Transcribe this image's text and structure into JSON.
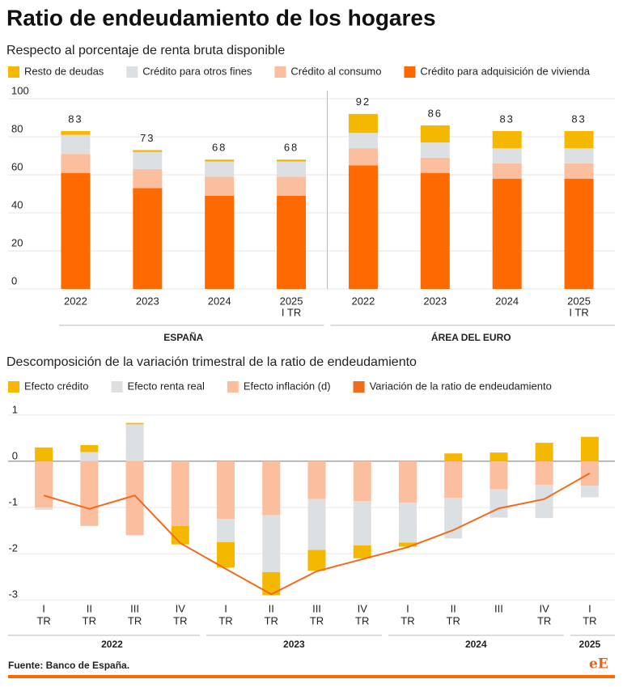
{
  "title": "Ratio de endeudamiento de los hogares",
  "source": "Fuente: Banco de España.",
  "logo": "eE",
  "chart_data": [
    {
      "type": "stacked_bar",
      "title": "Respecto al porcentaje de renta bruta disponible",
      "groups": [
        {
          "name": "ESPAÑA",
          "categories": [
            [
              "2022"
            ],
            [
              "2023"
            ],
            [
              "2024"
            ],
            [
              "2025",
              "I TR"
            ]
          ]
        },
        {
          "name": "ÁREA DEL EURO",
          "categories": [
            [
              "2022"
            ],
            [
              "2023"
            ],
            [
              "2024"
            ],
            [
              "2025",
              "I TR"
            ]
          ]
        }
      ],
      "series": [
        {
          "name": "Resto de deudas",
          "color": "#f5b800",
          "values": [
            2,
            1,
            1,
            1,
            10,
            9,
            9,
            9
          ]
        },
        {
          "name": "Crédito para otros fines",
          "color": "#dde0e3",
          "values": [
            10,
            9,
            8,
            8,
            8,
            8,
            8,
            8
          ]
        },
        {
          "name": "Crédito al consumo",
          "color": "#fbbf9f",
          "values": [
            10,
            10,
            10,
            10,
            9,
            8,
            8,
            8
          ]
        },
        {
          "name": "Crédito para adquisición de vivienda",
          "color": "#ff6a00",
          "values": [
            61,
            53,
            49,
            49,
            65,
            61,
            58,
            58
          ]
        }
      ],
      "totals": [
        83,
        73,
        68,
        68,
        92,
        86,
        83,
        83
      ],
      "ylim": [
        0,
        100
      ],
      "yticks": [
        0,
        20,
        40,
        60,
        80,
        100
      ],
      "grid": true,
      "group_divider": true
    },
    {
      "type": "stacked_bar_line",
      "title": "Descomposición de la variación trimestral de la ratio de endeudamiento",
      "groups": [
        {
          "name": "2022",
          "categories": [
            [
              "I",
              "TR"
            ],
            [
              "II",
              "TR"
            ],
            [
              "III",
              "TR"
            ],
            [
              "IV",
              "TR"
            ]
          ]
        },
        {
          "name": "2023",
          "categories": [
            [
              "I",
              "TR"
            ],
            [
              "II",
              "TR"
            ],
            [
              "III",
              "TR"
            ],
            [
              "IV",
              "TR"
            ]
          ]
        },
        {
          "name": "2024",
          "categories": [
            [
              "I",
              "TR"
            ],
            [
              "II",
              "TR"
            ],
            [
              "III"
            ],
            [
              "IV",
              "TR"
            ]
          ]
        },
        {
          "name": "2025",
          "categories": [
            [
              "I",
              "TR"
            ]
          ]
        }
      ],
      "series": [
        {
          "name": "Efecto crédito",
          "color": "#f5b800",
          "values": [
            0.3,
            0.15,
            0.03,
            -0.4,
            -0.55,
            -0.5,
            -0.45,
            -0.28,
            -0.09,
            0.17,
            0.19,
            0.4,
            0.53
          ]
        },
        {
          "name": "Efecto renta real",
          "color": "#dde0e3",
          "values": [
            -0.05,
            0.2,
            0.8,
            0,
            -0.5,
            -1.23,
            -1.1,
            -0.96,
            -0.86,
            -0.88,
            -0.61,
            -0.72,
            -0.25
          ]
        },
        {
          "name": "Efecto inflación (d)",
          "color": "#fbbf9f",
          "values": [
            -1.0,
            -1.4,
            -1.6,
            -1.4,
            -1.25,
            -1.17,
            -0.82,
            -0.86,
            -0.9,
            -0.79,
            -0.61,
            -0.51,
            -0.53
          ]
        },
        {
          "name": "Variación de la ratio de endeudamiento",
          "color": "#f26a1b",
          "type": "line",
          "values": [
            -0.74,
            -1.03,
            -0.74,
            -1.77,
            -2.33,
            -2.88,
            -2.38,
            -2.12,
            -1.86,
            -1.49,
            -1.02,
            -0.82,
            -0.26
          ]
        }
      ],
      "ylim": [
        -3.05,
        1.05
      ],
      "yticks": [
        1,
        0,
        -1,
        -2,
        -3
      ],
      "grid": true,
      "group_divider": false
    }
  ]
}
